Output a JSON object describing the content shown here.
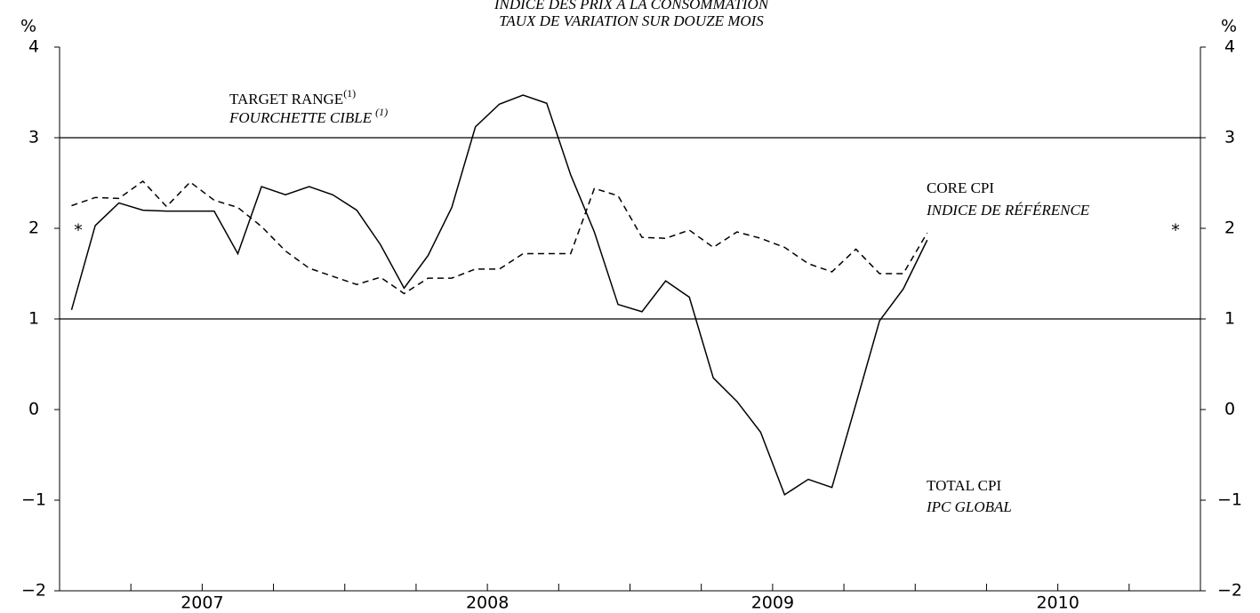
{
  "chart_data": {
    "type": "line",
    "title": "INDICE DES PRIX À LA CONSOMMATION",
    "subtitle": "TAUX DE VARIATION SUR DOUZE MOIS",
    "y_label": "%",
    "y2_label": "%",
    "target_label": "TARGET RANGE",
    "target_label_fr": "FOURCHETTE CIBLE",
    "footnote_mark": "(1)",
    "core_label": "CORE CPI",
    "core_label_fr": "INDICE DE RÉFÉRENCE",
    "total_label": "TOTAL CPI",
    "total_label_fr": "IPC GLOBAL",
    "marker": "*",
    "target_range": [
      1,
      3
    ],
    "x": [
      2007.042,
      2007.125,
      2007.208,
      2007.292,
      2007.375,
      2007.458,
      2007.542,
      2007.625,
      2007.708,
      2007.792,
      2007.875,
      2007.958,
      2008.042,
      2008.125,
      2008.208,
      2008.292,
      2008.375,
      2008.458,
      2008.542,
      2008.625,
      2008.708,
      2008.792,
      2008.875,
      2008.958,
      2009.042,
      2009.125,
      2009.208,
      2009.292,
      2009.375,
      2009.458,
      2009.542,
      2009.625,
      2009.708,
      2009.792,
      2009.875,
      2009.958,
      2010.042
    ],
    "series": [
      {
        "name": "TOTAL CPI",
        "color": "#000000",
        "dash": false,
        "values": [
          1.1,
          2.03,
          2.28,
          2.2,
          2.19,
          2.19,
          2.19,
          1.72,
          2.46,
          2.37,
          2.46,
          2.37,
          2.2,
          1.82,
          1.34,
          1.7,
          2.23,
          3.12,
          3.37,
          3.47,
          3.38,
          2.59,
          1.96,
          1.16,
          1.08,
          1.42,
          1.24,
          0.35,
          0.09,
          -0.25,
          -0.94,
          -0.77,
          -0.86,
          0.06,
          0.98,
          1.33,
          1.87
        ]
      },
      {
        "name": "CORE CPI",
        "color": "#000000",
        "dash": true,
        "values": [
          2.25,
          2.34,
          2.33,
          2.52,
          2.24,
          2.51,
          2.31,
          2.23,
          2.02,
          1.75,
          1.56,
          1.47,
          1.38,
          1.46,
          1.28,
          1.45,
          1.45,
          1.55,
          1.55,
          1.72,
          1.72,
          1.72,
          2.44,
          2.36,
          1.9,
          1.89,
          1.98,
          1.79,
          1.96,
          1.89,
          1.79,
          1.61,
          1.52,
          1.77,
          1.5,
          1.5,
          1.95
        ]
      }
    ],
    "xlim": [
      2007,
      2011
    ],
    "xticks": [
      {
        "value": 2007.5,
        "label": "2007"
      },
      {
        "value": 2008.5,
        "label": "2008"
      },
      {
        "value": 2009.5,
        "label": "2009"
      },
      {
        "value": 2010.5,
        "label": "2010"
      }
    ],
    "xminorticks": [
      2007.25,
      2007.5,
      2007.75,
      2008,
      2008.25,
      2008.5,
      2008.75,
      2009,
      2009.25,
      2009.5,
      2009.75,
      2010,
      2010.25,
      2010.5,
      2010.75
    ],
    "ylim": [
      -2,
      4
    ],
    "yticks": [
      {
        "value": -2,
        "label": "−2"
      },
      {
        "value": -1,
        "label": "−1"
      },
      0,
      1,
      2,
      3,
      4
    ],
    "y2lim": [
      -2,
      4
    ]
  }
}
